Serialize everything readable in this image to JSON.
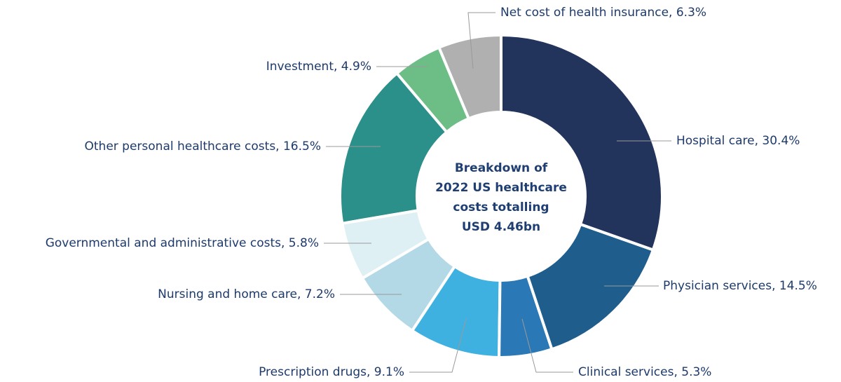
{
  "chart_data": {
    "type": "pie",
    "donut": true,
    "title": [
      "Breakdown of",
      "2022 US healthcare",
      "costs totalling",
      "USD 4.46bn"
    ],
    "values": [
      30.4,
      14.5,
      5.3,
      9.1,
      7.2,
      5.8,
      16.5,
      4.9,
      6.3
    ],
    "value_labels": [
      "Hospital care, 30.4%",
      "Physician services, 14.5%",
      "Clinical services, 5.3%",
      "Prescription drugs, 9.1%",
      "Nursing and home care, 7.2%",
      "Governmental and administrative costs, 5.8%",
      "Other personal healthcare costs, 16.5%",
      "Investment, 4.9%",
      "Net cost of health insurance, 6.3%"
    ],
    "colors": [
      "#22335c",
      "#1f5d8c",
      "#2a78b5",
      "#3fb1e0",
      "#b3d8e6",
      "#dff0f5",
      "#2b8f8a",
      "#6dbd86",
      "#b0b0b0"
    ]
  }
}
